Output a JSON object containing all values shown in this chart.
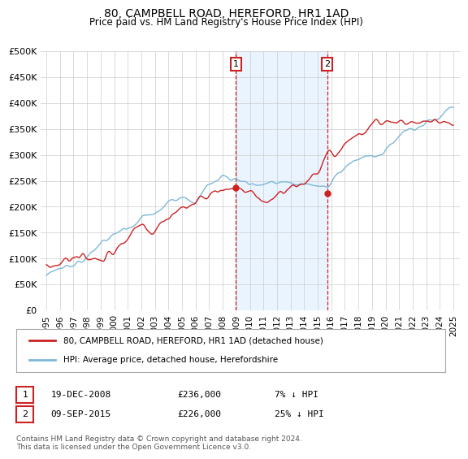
{
  "title": "80, CAMPBELL ROAD, HEREFORD, HR1 1AD",
  "subtitle": "Price paid vs. HM Land Registry's House Price Index (HPI)",
  "ylim": [
    0,
    500000
  ],
  "yticks": [
    0,
    50000,
    100000,
    150000,
    200000,
    250000,
    300000,
    350000,
    400000,
    450000,
    500000
  ],
  "ytick_labels": [
    "£0",
    "£50K",
    "£100K",
    "£150K",
    "£200K",
    "£250K",
    "£300K",
    "£350K",
    "£400K",
    "£450K",
    "£500K"
  ],
  "hpi_color": "#7db8d8",
  "price_color": "#cc2222",
  "shade_color": "#ddeeff",
  "t1": 2008.97,
  "t2": 2015.69,
  "price_at_t1": 236000,
  "price_at_t2": 226000,
  "legend_line1": "80, CAMPBELL ROAD, HEREFORD, HR1 1AD (detached house)",
  "legend_line2": "HPI: Average price, detached house, Herefordshire",
  "note1_label": "1",
  "note1_date": "19-DEC-2008",
  "note1_price": "£236,000",
  "note1_hpi": "7% ↓ HPI",
  "note2_label": "2",
  "note2_date": "09-SEP-2015",
  "note2_price": "£226,000",
  "note2_hpi": "25% ↓ HPI",
  "footer": "Contains HM Land Registry data © Crown copyright and database right 2024.\nThis data is licensed under the Open Government Licence v3.0.",
  "background_color": "#ffffff",
  "grid_color": "#cccccc",
  "dashed_color": "#cc2222"
}
